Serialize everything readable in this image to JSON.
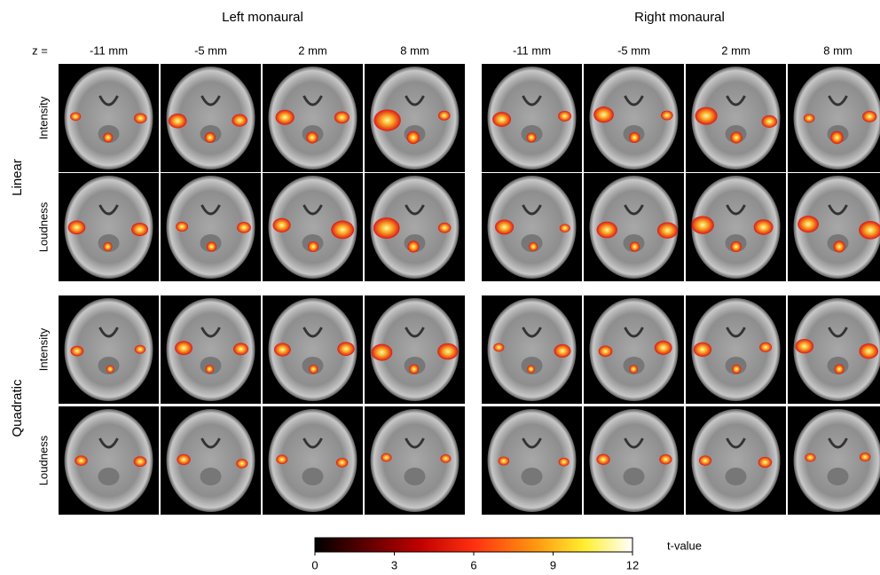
{
  "panels": [
    {
      "title": "Left monaural"
    },
    {
      "title": "Right monaural"
    }
  ],
  "z_label": "z =",
  "slices": [
    "-11 mm",
    "-5 mm",
    "2 mm",
    "8 mm"
  ],
  "row_groups": [
    {
      "label": "Linear",
      "rows": [
        "Intensity",
        "Loudness"
      ]
    },
    {
      "label": "Quadratic",
      "rows": [
        "Intensity",
        "Loudness"
      ]
    }
  ],
  "colorbar": {
    "label": "t-value",
    "ticks": [
      0,
      3,
      6,
      9,
      12
    ]
  }
}
